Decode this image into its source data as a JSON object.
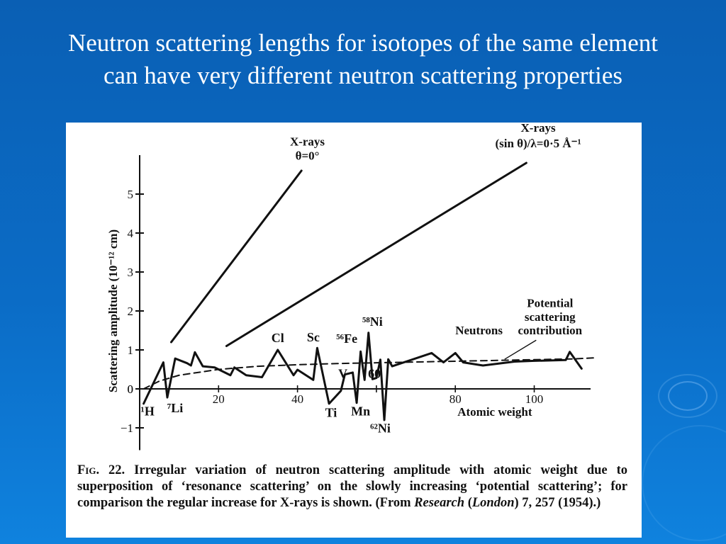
{
  "slide": {
    "title_line1": "Neutron scattering lengths for isotopes of the same element",
    "title_line2": "can have very different neutron scattering properties"
  },
  "caption": {
    "fig_label": "Fig. 22.",
    "text": "Irregular variation of neutron scattering amplitude with atomic weight due to superposition of ‘resonance scattering’ on the slowly increasing ‘potential scattering’; for comparison the regular increase for X-rays is shown. (From ",
    "source_italic1": "Research",
    "source_paren_open": "(",
    "source_italic2": "London",
    "source_rest": ") 7, 257 (1954).)"
  },
  "colors": {
    "background": "#0b6cc6",
    "title": "#ffffff",
    "panel": "#ffffff",
    "ink": "#111111"
  },
  "chart_data": {
    "type": "line",
    "ylabel": "Scattering amplitude (10⁻¹² cm)",
    "xlabel": "Atomic weight",
    "xlim": [
      0,
      115
    ],
    "ylim": [
      -1.5,
      6
    ],
    "x_ticks": [
      20,
      40,
      60,
      80,
      100
    ],
    "y_ticks": [
      -1,
      0,
      1,
      2,
      3,
      4,
      5
    ],
    "series": [
      {
        "name": "Neutrons",
        "style": "solid",
        "points": [
          [
            1,
            -0.38
          ],
          [
            6,
            0.68
          ],
          [
            7,
            -0.22
          ],
          [
            9,
            0.78
          ],
          [
            12,
            0.66
          ],
          [
            13,
            0.6
          ],
          [
            14,
            0.94
          ],
          [
            16,
            0.58
          ],
          [
            19,
            0.55
          ],
          [
            23,
            0.35
          ],
          [
            24,
            0.55
          ],
          [
            27,
            0.35
          ],
          [
            31,
            0.3
          ],
          [
            35,
            1.0
          ],
          [
            39,
            0.35
          ],
          [
            40,
            0.49
          ],
          [
            44,
            0.23
          ],
          [
            45,
            1.05
          ],
          [
            48,
            -0.38
          ],
          [
            51,
            -0.05
          ],
          [
            52,
            0.37
          ],
          [
            54,
            0.42
          ],
          [
            55,
            -0.36
          ],
          [
            56,
            0.96
          ],
          [
            57,
            0.23
          ],
          [
            58,
            1.44
          ],
          [
            59,
            0.25
          ],
          [
            60,
            0.28
          ],
          [
            61,
            0.75
          ],
          [
            62,
            -0.8
          ],
          [
            63,
            0.76
          ],
          [
            64,
            0.58
          ],
          [
            74,
            0.92
          ],
          [
            77,
            0.68
          ],
          [
            80,
            0.92
          ],
          [
            82,
            0.68
          ],
          [
            87,
            0.6
          ],
          [
            95,
            0.7
          ],
          [
            100,
            0.72
          ],
          [
            108,
            0.74
          ],
          [
            109,
            0.95
          ],
          [
            112,
            0.52
          ]
        ]
      },
      {
        "name": "Potential scattering contribution",
        "style": "dashed",
        "points": [
          [
            1,
            0.0
          ],
          [
            5,
            0.2
          ],
          [
            10,
            0.35
          ],
          [
            20,
            0.5
          ],
          [
            30,
            0.58
          ],
          [
            40,
            0.62
          ],
          [
            50,
            0.65
          ],
          [
            60,
            0.67
          ],
          [
            70,
            0.69
          ],
          [
            80,
            0.71
          ],
          [
            90,
            0.73
          ],
          [
            100,
            0.75
          ],
          [
            110,
            0.77
          ],
          [
            116,
            0.8
          ]
        ]
      },
      {
        "name": "X-rays θ=0°",
        "style": "solid",
        "points": [
          [
            8,
            1.2
          ],
          [
            41,
            5.6
          ]
        ]
      },
      {
        "name": "X-rays (sin θ)/λ=0·5 Å⁻¹",
        "style": "solid",
        "points": [
          [
            22,
            1.1
          ],
          [
            98,
            5.8
          ]
        ]
      }
    ],
    "annotations": [
      {
        "text": "X-rays",
        "x": 42.5,
        "y": 6.25,
        "kind": "label"
      },
      {
        "text": "θ=0°",
        "x": 42.5,
        "y": 5.88,
        "kind": "label"
      },
      {
        "text": "X-rays",
        "x": 101,
        "y": 6.6,
        "kind": "label"
      },
      {
        "text": "(sin θ)/λ=0·5 Å⁻¹",
        "x": 101,
        "y": 6.2,
        "kind": "label"
      },
      {
        "text": "Neutrons",
        "x": 86,
        "y": 1.4,
        "kind": "label"
      },
      {
        "text": "Potential",
        "x": 104,
        "y": 2.1,
        "kind": "label"
      },
      {
        "text": "scattering",
        "x": 104,
        "y": 1.75,
        "kind": "label"
      },
      {
        "text": "contribution",
        "x": 104,
        "y": 1.4,
        "kind": "label"
      },
      {
        "text": "¹H",
        "x": 2,
        "y": -0.68,
        "kind": "isotope"
      },
      {
        "text": "⁷Li",
        "x": 9,
        "y": -0.6,
        "kind": "isotope"
      },
      {
        "text": "Cl",
        "x": 35,
        "y": 1.2,
        "kind": "isotope"
      },
      {
        "text": "Sc",
        "x": 44,
        "y": 1.22,
        "kind": "isotope"
      },
      {
        "text": "⁵⁸Ni",
        "x": 59,
        "y": 1.62,
        "kind": "isotope"
      },
      {
        "text": "⁵⁶Fe",
        "x": 52.5,
        "y": 1.18,
        "kind": "isotope"
      },
      {
        "text": "V",
        "x": 51.5,
        "y": 0.28,
        "kind": "isotope"
      },
      {
        "text": "60",
        "x": 59.5,
        "y": 0.28,
        "kind": "tick-inline"
      },
      {
        "text": "Ti",
        "x": 48.5,
        "y": -0.72,
        "kind": "isotope"
      },
      {
        "text": "Mn",
        "x": 56,
        "y": -0.68,
        "kind": "isotope"
      },
      {
        "text": "⁶²Ni",
        "x": 61,
        "y": -1.12,
        "kind": "isotope"
      }
    ]
  }
}
